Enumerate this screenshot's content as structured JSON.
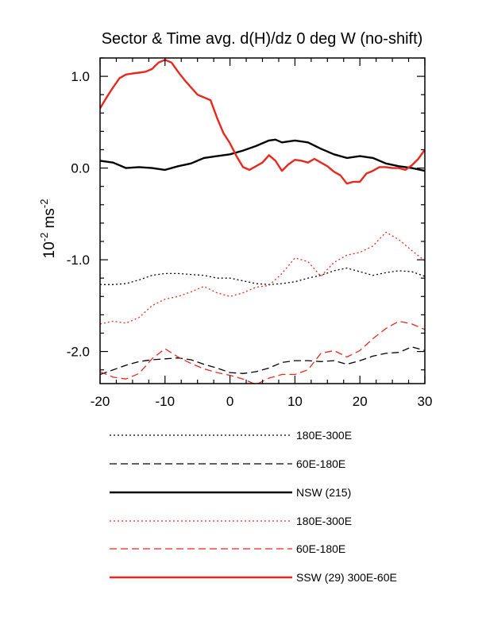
{
  "chart_data": {
    "type": "line",
    "title": "Sector & Time avg. d(H)/dz 0 deg W (no-shift)",
    "xlabel": "",
    "ylabel_base": "10",
    "ylabel_exp": "-2",
    "ylabel_unit": " ms",
    "ylabel_unit_exp": "-2",
    "xlim": [
      -20,
      30
    ],
    "ylim": [
      -2.35,
      1.2
    ],
    "xticks": [
      -20,
      -10,
      0,
      10,
      20,
      30
    ],
    "xtick_labels": [
      "-20",
      "-10",
      "0",
      "10",
      "20",
      "30"
    ],
    "yticks": [
      1.0,
      0.0,
      -1.0,
      -2.0
    ],
    "ytick_labels": [
      "1.0",
      "0.0",
      "-1.0",
      "-2.0"
    ],
    "grid": false,
    "legend_position": "below",
    "series": [
      {
        "name": "180E-300E",
        "color": "#000000",
        "style": "dotted",
        "width": 1.3,
        "x": [
          -20,
          -18,
          -16,
          -14,
          -12,
          -10,
          -8,
          -6,
          -4,
          -2,
          0,
          2,
          4,
          6,
          8,
          10,
          12,
          14,
          16,
          18,
          20,
          22,
          24,
          26,
          28,
          30
        ],
        "y": [
          -1.27,
          -1.27,
          -1.26,
          -1.22,
          -1.17,
          -1.15,
          -1.15,
          -1.16,
          -1.17,
          -1.2,
          -1.2,
          -1.23,
          -1.26,
          -1.27,
          -1.26,
          -1.24,
          -1.2,
          -1.17,
          -1.12,
          -1.09,
          -1.13,
          -1.17,
          -1.14,
          -1.12,
          -1.13,
          -1.18
        ]
      },
      {
        "name": "60E-180E",
        "color": "#000000",
        "style": "dashed",
        "width": 1.3,
        "x": [
          -20,
          -18,
          -16,
          -14,
          -12,
          -10,
          -8,
          -6,
          -4,
          -2,
          0,
          2,
          4,
          6,
          8,
          10,
          12,
          14,
          16,
          18,
          20,
          22,
          24,
          26,
          28,
          30
        ],
        "y": [
          -2.25,
          -2.2,
          -2.15,
          -2.11,
          -2.09,
          -2.08,
          -2.07,
          -2.09,
          -2.14,
          -2.18,
          -2.23,
          -2.24,
          -2.22,
          -2.18,
          -2.12,
          -2.1,
          -2.1,
          -2.11,
          -2.1,
          -2.14,
          -2.1,
          -2.05,
          -2.02,
          -2.01,
          -1.95,
          -1.99
        ]
      },
      {
        "name": "NSW (215)",
        "color": "#000000",
        "style": "solid",
        "width": 2.4,
        "x": [
          -20,
          -18,
          -16,
          -14,
          -12,
          -10,
          -8,
          -6,
          -4,
          -2,
          0,
          2,
          4,
          6,
          7,
          8,
          10,
          12,
          14,
          16,
          18,
          20,
          22,
          24,
          26,
          28,
          30
        ],
        "y": [
          0.08,
          0.06,
          0.0,
          0.01,
          0.0,
          -0.02,
          0.02,
          0.05,
          0.11,
          0.13,
          0.15,
          0.19,
          0.24,
          0.3,
          0.31,
          0.28,
          0.3,
          0.28,
          0.21,
          0.15,
          0.11,
          0.13,
          0.11,
          0.05,
          0.02,
          0.0,
          -0.03
        ]
      },
      {
        "name": "180E-300E",
        "color": "#e8281e",
        "style": "dotted",
        "width": 1.3,
        "x": [
          -20,
          -18,
          -16,
          -14,
          -12,
          -10,
          -8,
          -6,
          -4,
          -2,
          0,
          2,
          4,
          6,
          8,
          10,
          12,
          14,
          16,
          18,
          20,
          22,
          24,
          26,
          28,
          30
        ],
        "y": [
          -1.7,
          -1.67,
          -1.69,
          -1.63,
          -1.5,
          -1.43,
          -1.4,
          -1.35,
          -1.29,
          -1.36,
          -1.4,
          -1.36,
          -1.3,
          -1.28,
          -1.15,
          -0.98,
          -1.02,
          -1.18,
          -1.03,
          -0.95,
          -0.92,
          -0.85,
          -0.7,
          -0.78,
          -0.9,
          -1.01
        ]
      },
      {
        "name": "60E-180E",
        "color": "#e8281e",
        "style": "dashed",
        "width": 1.3,
        "x": [
          -20,
          -18,
          -16,
          -14,
          -12,
          -10,
          -8,
          -6,
          -4,
          -2,
          0,
          2,
          4,
          6,
          8,
          10,
          12,
          14,
          16,
          18,
          20,
          22,
          24,
          26,
          28,
          30
        ],
        "y": [
          -2.22,
          -2.28,
          -2.3,
          -2.24,
          -2.08,
          -1.97,
          -2.06,
          -2.13,
          -2.19,
          -2.23,
          -2.26,
          -2.3,
          -2.36,
          -2.29,
          -2.25,
          -2.25,
          -2.2,
          -2.02,
          -1.99,
          -2.06,
          -1.99,
          -1.86,
          -1.75,
          -1.67,
          -1.7,
          -1.76
        ]
      },
      {
        "name": "SSW (29) 300E-60E",
        "color": "#e8281e",
        "style": "solid",
        "width": 2.4,
        "x": [
          -20,
          -19,
          -18,
          -17,
          -16,
          -15,
          -14,
          -13,
          -12,
          -11,
          -10,
          -9,
          -8,
          -7,
          -6,
          -5,
          -4,
          -3,
          -2,
          -1,
          0,
          1,
          2,
          3,
          4,
          5,
          6,
          7,
          8,
          9,
          10,
          11,
          12,
          13,
          14,
          15,
          16,
          17,
          18,
          19,
          20,
          21,
          22,
          23,
          24,
          25,
          26,
          27,
          28,
          29,
          30
        ],
        "y": [
          0.65,
          0.77,
          0.88,
          0.98,
          1.02,
          1.03,
          1.04,
          1.05,
          1.08,
          1.15,
          1.18,
          1.15,
          1.05,
          0.96,
          0.88,
          0.8,
          0.77,
          0.74,
          0.55,
          0.38,
          0.27,
          0.13,
          0.01,
          -0.02,
          0.02,
          0.06,
          0.14,
          0.08,
          -0.03,
          0.04,
          0.09,
          0.08,
          0.06,
          0.1,
          0.06,
          0.02,
          -0.04,
          -0.08,
          -0.17,
          -0.15,
          -0.15,
          -0.06,
          -0.03,
          0.01,
          0.01,
          0.0,
          0.0,
          -0.02,
          0.03,
          0.1,
          0.2
        ]
      }
    ]
  }
}
